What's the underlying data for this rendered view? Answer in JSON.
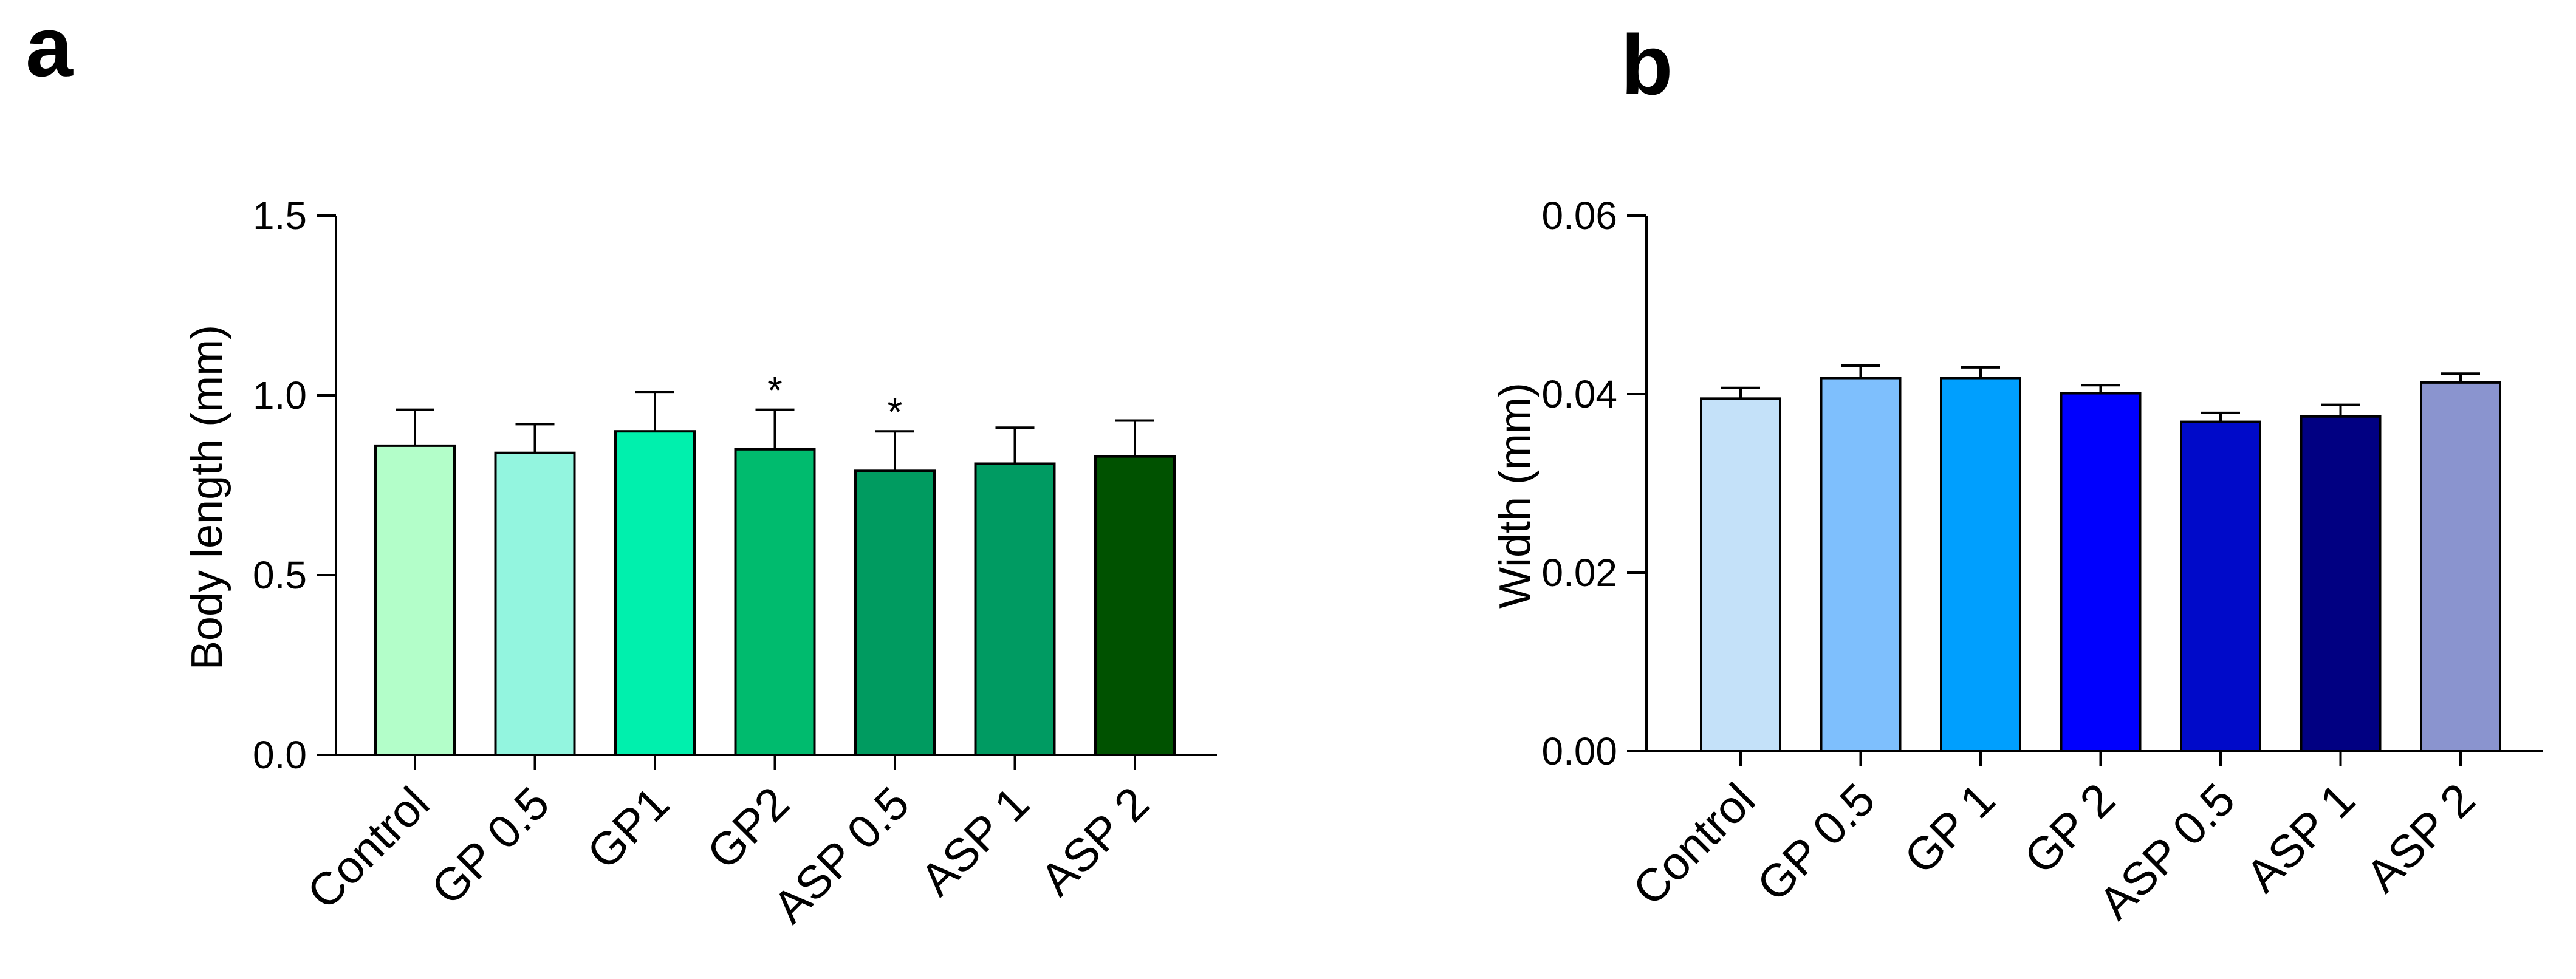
{
  "chart_data": [
    {
      "panel": "a",
      "type": "bar",
      "title": "",
      "xlabel": "",
      "ylabel": "Body length (mm)",
      "ylim": [
        0,
        1.5
      ],
      "yticks": [
        "0.0",
        "0.5",
        "1.0",
        "1.5"
      ],
      "yticks_values": [
        0,
        0.5,
        1.0,
        1.5
      ],
      "categories": [
        "Control",
        "GP 0.5",
        "GP1",
        "GP2",
        "ASP 0.5",
        "ASP 1",
        "ASP 2"
      ],
      "values": [
        0.86,
        0.84,
        0.9,
        0.85,
        0.79,
        0.81,
        0.83
      ],
      "errors": [
        0.1,
        0.08,
        0.11,
        0.11,
        0.11,
        0.1,
        0.1
      ],
      "significance": [
        "",
        "",
        "",
        "*",
        "*",
        "",
        ""
      ],
      "colors": [
        "#b3fec9",
        "#93f5df",
        "#00f0ad",
        "#00bb6e",
        "#009b60",
        "#009b62",
        "#005200"
      ],
      "legend": "none",
      "grid": false
    },
    {
      "panel": "b",
      "type": "bar",
      "title": "",
      "xlabel": "",
      "ylabel": "Width (mm)",
      "ylim": [
        0,
        0.06
      ],
      "yticks": [
        "0.00",
        "0.02",
        "0.04",
        "0.06"
      ],
      "yticks_values": [
        0,
        0.02,
        0.04,
        0.06
      ],
      "categories": [
        "Control",
        "GP 0.5",
        "GP 1",
        "GP 2",
        "ASP 0.5",
        "ASP 1",
        "ASP 2"
      ],
      "values": [
        0.0395,
        0.0418,
        0.0418,
        0.0401,
        0.0369,
        0.0375,
        0.0413
      ],
      "errors": [
        0.0012,
        0.0014,
        0.0012,
        0.0009,
        0.001,
        0.0013,
        0.001
      ],
      "significance": [
        "",
        "",
        "",
        "",
        "",
        "",
        ""
      ],
      "colors": [
        "#c4e1f9",
        "#7ebffd",
        "#009ffe",
        "#0000fe",
        "#000ac9",
        "#010082",
        "#8a94cf"
      ],
      "legend": "none",
      "grid": false
    }
  ]
}
